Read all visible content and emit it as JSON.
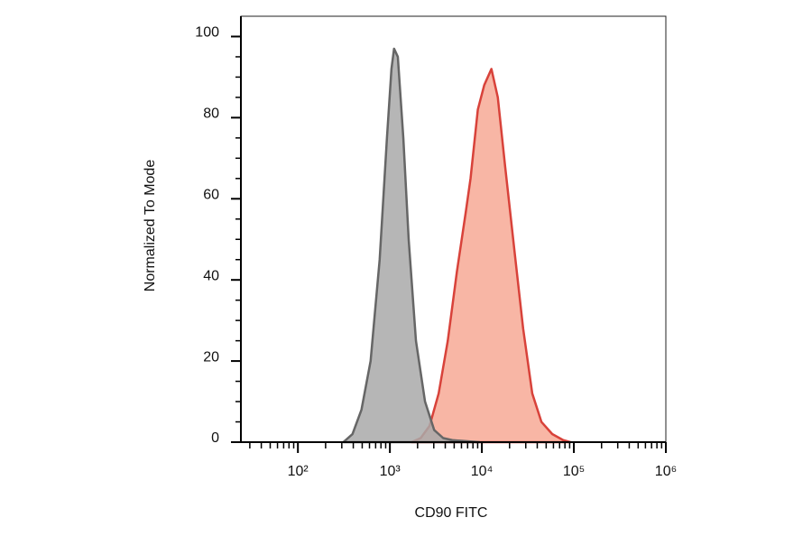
{
  "chart_data": {
    "type": "histogram-overlay",
    "xlabel": "CD90 FITC",
    "ylabel": "Normalized To Mode",
    "xscale": "log",
    "xlim": [
      24,
      1000000
    ],
    "xticks": [
      {
        "value": 100,
        "label": "10²"
      },
      {
        "value": 1000,
        "label": "10³"
      },
      {
        "value": 10000,
        "label": "10⁴"
      },
      {
        "value": 100000,
        "label": "10⁵"
      },
      {
        "value": 1000000,
        "label": "10⁶"
      }
    ],
    "xminorticks": [
      30,
      40,
      50,
      60,
      70,
      80,
      90,
      200,
      300,
      400,
      500,
      600,
      700,
      800,
      900,
      2000,
      3000,
      4000,
      5000,
      6000,
      7000,
      8000,
      9000,
      20000,
      30000,
      40000,
      50000,
      60000,
      70000,
      80000,
      90000,
      200000,
      300000,
      400000,
      500000,
      600000,
      700000,
      800000,
      900000
    ],
    "ylim": [
      0,
      105
    ],
    "yticks": [
      0,
      20,
      40,
      60,
      80,
      100
    ],
    "yminorticks": [
      5,
      10,
      15,
      25,
      30,
      35,
      45,
      50,
      55,
      65,
      70,
      75,
      85,
      90,
      95
    ],
    "series": [
      {
        "color": "#f7a995",
        "stroke": "#d8423a",
        "x": [
          1720,
          2160,
          2700,
          3390,
          4260,
          5350,
          6710,
          7530,
          9040,
          10600,
          12700,
          14900,
          17900,
          22400,
          28100,
          35300,
          44400,
          58200,
          76600,
          91800
        ],
        "values": [
          0,
          1,
          4,
          12,
          25,
          42,
          57,
          65,
          82,
          88,
          92,
          85,
          68,
          48,
          28,
          12,
          5,
          2,
          0.5,
          0
        ]
      },
      {
        "color": "#a9a9a9",
        "stroke": "#666666",
        "x": [
          312,
          392,
          491,
          617,
          774,
          929,
          1040,
          1110,
          1220,
          1400,
          1600,
          1920,
          2410,
          3030,
          3800,
          4770,
          9440
        ],
        "values": [
          0,
          2,
          8,
          20,
          45,
          75,
          92,
          97,
          95,
          75,
          50,
          25,
          10,
          3,
          1,
          0.5,
          0
        ]
      }
    ]
  }
}
